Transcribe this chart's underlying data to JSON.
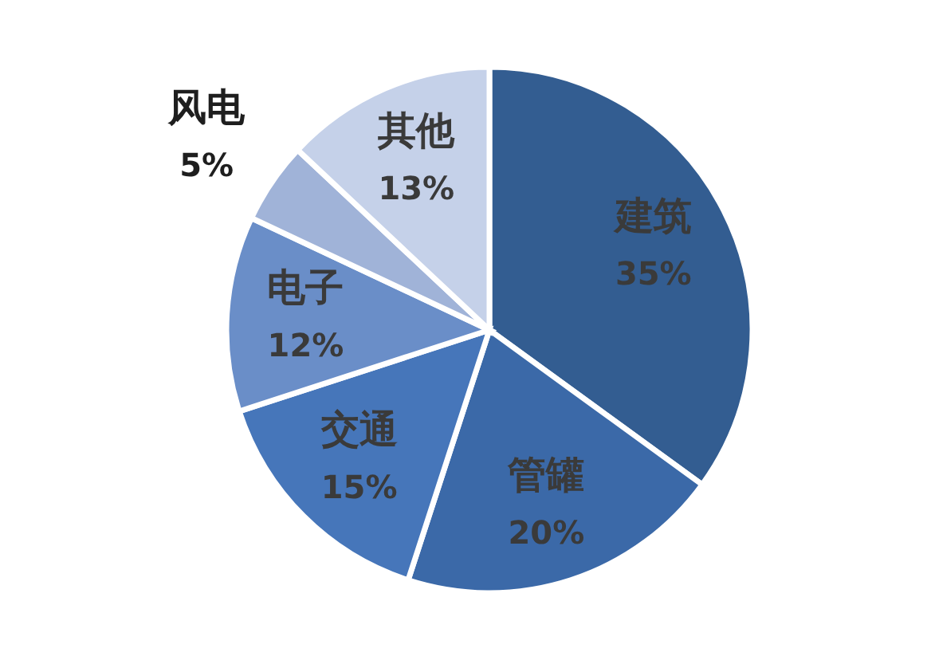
{
  "chart_data": {
    "type": "pie",
    "categories": [
      "建筑",
      "管罐",
      "交通",
      "电子",
      "风电",
      "其他"
    ],
    "values": [
      35,
      20,
      15,
      12,
      5,
      13
    ],
    "value_labels": [
      "35%",
      "20%",
      "15%",
      "12%",
      "5%",
      "13%"
    ],
    "colors": [
      "#335d91",
      "#3b69a8",
      "#4676ba",
      "#6a8ec8",
      "#a0b3d8",
      "#c5d1e9"
    ]
  }
}
